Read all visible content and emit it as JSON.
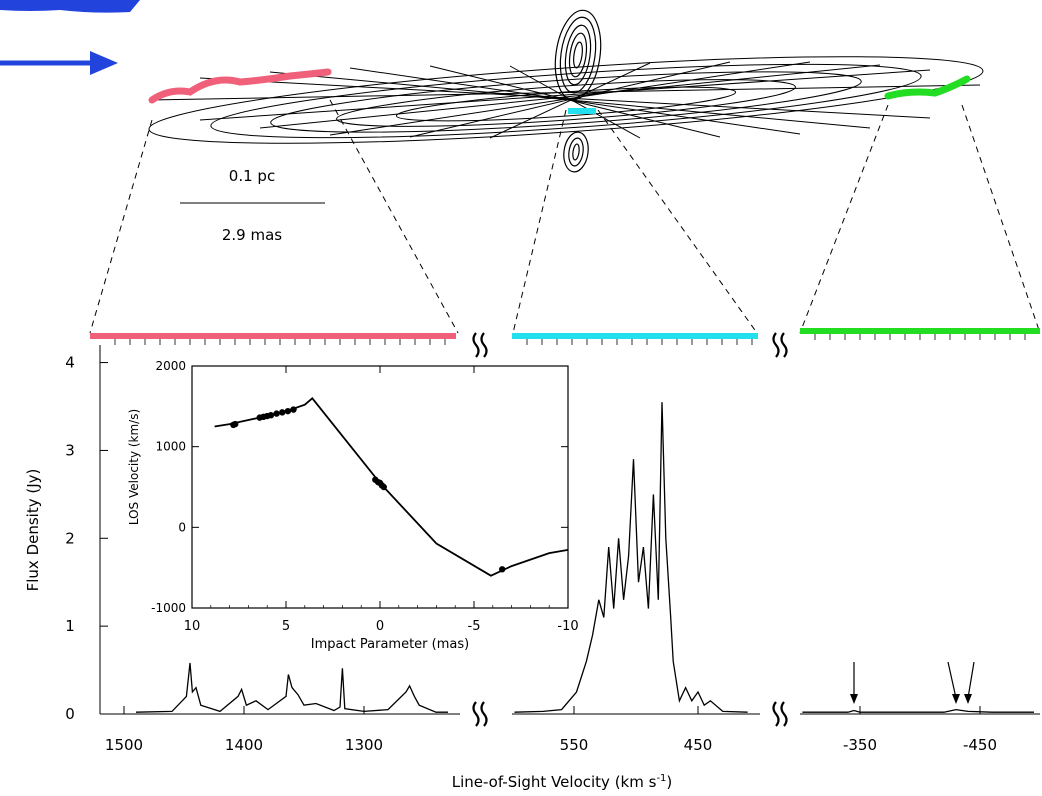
{
  "disk": {
    "scale_pc": "0.1 pc",
    "scale_mas": "2.9 mas",
    "colors": {
      "red": "#f0607a",
      "cyan": "#22e0ee",
      "green": "#22dd22",
      "arrow": "#2244dd"
    }
  },
  "chart_data": [
    {
      "type": "line",
      "ylabel": "Flux Density (Jy)",
      "xlabel_main": "Line-of-Sight Velocity (km s",
      "xlabel_sup": "-1",
      "xlabel_close": ")",
      "ylim": [
        0,
        4.2
      ],
      "yticks": [
        "0",
        "1",
        "2",
        "3",
        "4"
      ],
      "panels": [
        {
          "name": "red",
          "xlim": [
            1520,
            1220
          ],
          "xticks": [
            "1500",
            "1400",
            "1300"
          ],
          "tick_values": [
            1500,
            1400,
            1300
          ],
          "spectrum": [
            [
              1490,
              0.02
            ],
            [
              1460,
              0.03
            ],
            [
              1448,
              0.2
            ],
            [
              1445,
              0.58
            ],
            [
              1443,
              0.25
            ],
            [
              1440,
              0.3
            ],
            [
              1436,
              0.1
            ],
            [
              1420,
              0.03
            ],
            [
              1405,
              0.2
            ],
            [
              1402,
              0.28
            ],
            [
              1398,
              0.1
            ],
            [
              1390,
              0.15
            ],
            [
              1380,
              0.05
            ],
            [
              1365,
              0.2
            ],
            [
              1363,
              0.45
            ],
            [
              1360,
              0.3
            ],
            [
              1355,
              0.22
            ],
            [
              1350,
              0.1
            ],
            [
              1340,
              0.12
            ],
            [
              1325,
              0.04
            ],
            [
              1320,
              0.08
            ],
            [
              1318,
              0.52
            ],
            [
              1316,
              0.06
            ],
            [
              1300,
              0.03
            ],
            [
              1280,
              0.05
            ],
            [
              1265,
              0.25
            ],
            [
              1262,
              0.32
            ],
            [
              1258,
              0.2
            ],
            [
              1254,
              0.1
            ],
            [
              1240,
              0.02
            ],
            [
              1230,
              0.02
            ]
          ]
        },
        {
          "name": "cyan",
          "xlim": [
            600,
            400
          ],
          "xticks": [
            "550",
            "450"
          ],
          "tick_values": [
            550,
            450
          ],
          "spectrum": [
            [
              598,
              0.02
            ],
            [
              575,
              0.03
            ],
            [
              560,
              0.05
            ],
            [
              548,
              0.25
            ],
            [
              540,
              0.6
            ],
            [
              535,
              0.9
            ],
            [
              530,
              1.3
            ],
            [
              526,
              1.1
            ],
            [
              522,
              1.9
            ],
            [
              518,
              1.2
            ],
            [
              514,
              2.0
            ],
            [
              510,
              1.3
            ],
            [
              506,
              1.8
            ],
            [
              502,
              2.9
            ],
            [
              498,
              1.5
            ],
            [
              494,
              1.9
            ],
            [
              490,
              1.2
            ],
            [
              486,
              2.5
            ],
            [
              482,
              1.3
            ],
            [
              479,
              3.55
            ],
            [
              476,
              2.0
            ],
            [
              472,
              1.1
            ],
            [
              470,
              0.6
            ],
            [
              465,
              0.15
            ],
            [
              460,
              0.3
            ],
            [
              455,
              0.15
            ],
            [
              450,
              0.25
            ],
            [
              445,
              0.1
            ],
            [
              440,
              0.15
            ],
            [
              430,
              0.03
            ],
            [
              410,
              0.02
            ]
          ]
        },
        {
          "name": "green",
          "xlim": [
            -300,
            -500
          ],
          "xticks": [
            "-350",
            "-450"
          ],
          "tick_values": [
            -350,
            -450
          ],
          "spectrum": [
            [
              -302,
              0.02
            ],
            [
              -340,
              0.02
            ],
            [
              -345,
              0.04
            ],
            [
              -350,
              0.02
            ],
            [
              -420,
              0.02
            ],
            [
              -430,
              0.05
            ],
            [
              -440,
              0.03
            ],
            [
              -460,
              0.02
            ],
            [
              -495,
              0.02
            ]
          ],
          "arrows_at": [
            -345,
            -430,
            -440
          ]
        }
      ]
    },
    {
      "type": "line",
      "xlabel": "Impact Parameter (mas)",
      "ylabel": "LOS Velocity (km/s)",
      "xlim": [
        10,
        -10
      ],
      "ylim": [
        -1000,
        2000
      ],
      "xticks": [
        "10",
        "5",
        "0",
        "-5",
        "-10"
      ],
      "xtick_values": [
        10,
        5,
        0,
        -5,
        -10
      ],
      "yticks": [
        "-1000",
        "0",
        "1000",
        "2000"
      ],
      "ytick_values": [
        -1000,
        0,
        1000,
        2000
      ],
      "curve": [
        [
          8.8,
          1250
        ],
        [
          8.0,
          1280
        ],
        [
          7.0,
          1330
        ],
        [
          6.0,
          1380
        ],
        [
          5.0,
          1440
        ],
        [
          4.0,
          1520
        ],
        [
          3.6,
          1600
        ],
        [
          0,
          550
        ],
        [
          -3.0,
          -200
        ],
        [
          -5.9,
          -600
        ],
        [
          -7.0,
          -480
        ],
        [
          -8.0,
          -400
        ],
        [
          -9.0,
          -320
        ],
        [
          -10.0,
          -280
        ]
      ],
      "maser_points": [
        [
          7.8,
          1270
        ],
        [
          7.7,
          1280
        ],
        [
          6.4,
          1360
        ],
        [
          6.2,
          1370
        ],
        [
          6.0,
          1380
        ],
        [
          5.8,
          1390
        ],
        [
          5.5,
          1410
        ],
        [
          5.2,
          1425
        ],
        [
          4.9,
          1440
        ],
        [
          4.6,
          1460
        ],
        [
          0.25,
          590
        ],
        [
          0.1,
          560
        ],
        [
          0,
          550
        ],
        [
          -0.1,
          520
        ],
        [
          -0.2,
          500
        ],
        [
          -6.5,
          -520
        ]
      ]
    }
  ]
}
